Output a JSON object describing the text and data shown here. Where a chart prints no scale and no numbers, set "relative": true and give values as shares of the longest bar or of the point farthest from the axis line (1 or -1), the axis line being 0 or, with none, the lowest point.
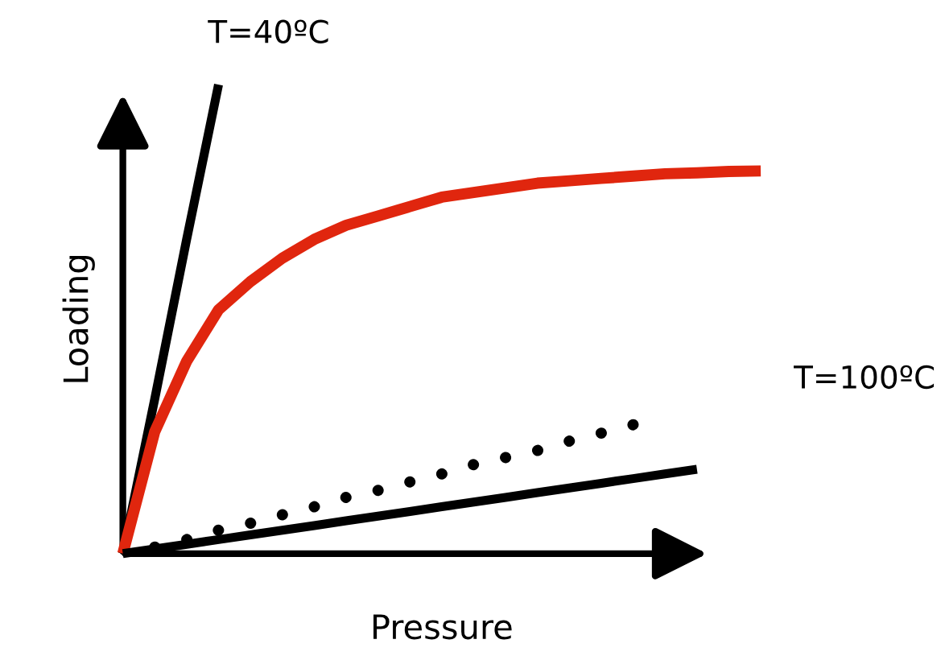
{
  "chart_data": {
    "type": "line",
    "relative": true,
    "xlabel": "Pressure",
    "ylabel": "Loading",
    "categories": [
      null,
      null,
      null,
      null,
      null,
      null,
      null,
      null,
      null,
      null,
      null,
      null,
      null,
      null,
      null,
      null,
      null,
      null,
      null,
      null,
      null
    ],
    "series": [
      {
        "name": "T=40ºC",
        "color": "#000000",
        "line_style": "solid",
        "values": [
          0,
          0.33,
          0.67,
          1.0,
          null,
          null,
          null,
          null,
          null,
          null,
          null,
          null,
          null,
          null,
          null,
          null,
          null,
          null,
          null,
          null,
          null
        ]
      },
      {
        "color": "#e0260e",
        "line_style": "solid",
        "values": [
          0,
          0.26,
          0.41,
          0.52,
          0.58,
          0.63,
          0.67,
          0.7,
          0.72,
          0.74,
          0.76,
          0.77,
          0.78,
          0.79,
          0.795,
          0.8,
          0.805,
          0.81,
          0.812,
          0.815,
          0.816
        ]
      },
      {
        "color": "#000000",
        "line_style": "dotted",
        "values": [
          null,
          0.014,
          0.03,
          0.05,
          0.065,
          0.083,
          0.1,
          0.12,
          0.135,
          0.153,
          0.17,
          0.19,
          0.205,
          0.22,
          0.24,
          0.257,
          0.275,
          null,
          null,
          null,
          null
        ]
      },
      {
        "name": "T=100ºC",
        "color": "#000000",
        "line_style": "solid",
        "values": [
          0,
          0.01,
          0.02,
          0.03,
          0.04,
          0.05,
          0.06,
          0.07,
          0.08,
          0.09,
          0.1,
          0.11,
          0.12,
          0.13,
          0.14,
          0.15,
          0.16,
          0.17,
          0.18,
          null,
          null
        ]
      }
    ]
  }
}
